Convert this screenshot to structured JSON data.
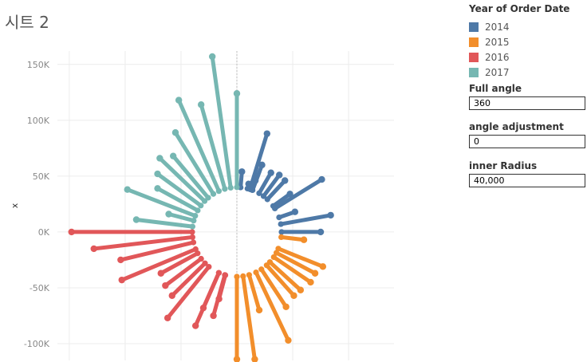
{
  "sheet_title": "시트 2",
  "legend": {
    "title": "Year of Order Date",
    "items": [
      {
        "label": "2014",
        "color": "#4e79a7"
      },
      {
        "label": "2015",
        "color": "#f28e2b"
      },
      {
        "label": "2016",
        "color": "#e15759"
      },
      {
        "label": "2017",
        "color": "#76b7b2"
      }
    ]
  },
  "parameters": [
    {
      "label": "Full angle",
      "value": "360"
    },
    {
      "label": "angle adjustment",
      "value": "0"
    },
    {
      "label": "inner Radius",
      "value": "40,000"
    }
  ],
  "chart_data": {
    "type": "radial-lollipop",
    "ylabel": "x",
    "ylim": [
      -115000,
      162000
    ],
    "yticks": [
      "150K",
      "100K",
      "50K",
      "0K",
      "-50K",
      "-100K"
    ],
    "ytick_values": [
      150000,
      100000,
      50000,
      0,
      -50000,
      -100000
    ],
    "inner_radius": 40000,
    "grid": true,
    "series": [
      {
        "name": "2014",
        "color": "#4e79a7",
        "points": [
          [
            4500,
            54000
          ],
          [
            10500,
            43000
          ],
          [
            16500,
            46000
          ],
          [
            22500,
            60000
          ],
          [
            27000,
            88000
          ],
          [
            30500,
            53000
          ],
          [
            38000,
            51000
          ],
          [
            43000,
            46000
          ],
          [
            47500,
            34000
          ],
          [
            52000,
            18000
          ],
          [
            76000,
            47000
          ],
          [
            84000,
            15000
          ],
          [
            75000,
            0
          ]
        ]
      },
      {
        "name": "2015",
        "color": "#f28e2b",
        "points": [
          [
            60000,
            -7000
          ],
          [
            77000,
            -31000
          ],
          [
            70000,
            -37000
          ],
          [
            66000,
            -45000
          ],
          [
            57000,
            -52000
          ],
          [
            51000,
            -57000
          ],
          [
            44000,
            -67000
          ],
          [
            46000,
            -97000
          ],
          [
            20000,
            -70000
          ],
          [
            16000,
            -114000
          ],
          [
            0,
            -114000
          ]
        ]
      },
      {
        "name": "2016",
        "color": "#e15759",
        "points": [
          [
            -16000,
            -60000
          ],
          [
            -21000,
            -75000
          ],
          [
            -30000,
            -68000
          ],
          [
            -37000,
            -84000
          ],
          [
            -62000,
            -77000
          ],
          [
            -58000,
            -57000
          ],
          [
            -64000,
            -48000
          ],
          [
            -68000,
            -37000
          ],
          [
            -103000,
            -43000
          ],
          [
            -104000,
            -25000
          ],
          [
            -128000,
            -15000
          ],
          [
            -148000,
            0
          ]
        ]
      },
      {
        "name": "2017",
        "color": "#76b7b2",
        "points": [
          [
            -90000,
            11000
          ],
          [
            -61000,
            16000
          ],
          [
            -98000,
            38000
          ],
          [
            -71000,
            39000
          ],
          [
            -71000,
            52000
          ],
          [
            -69000,
            66000
          ],
          [
            -57000,
            68000
          ],
          [
            -55000,
            89000
          ],
          [
            -52000,
            118000
          ],
          [
            -32000,
            114000
          ],
          [
            -22000,
            157000
          ],
          [
            0,
            124000
          ]
        ]
      }
    ]
  }
}
